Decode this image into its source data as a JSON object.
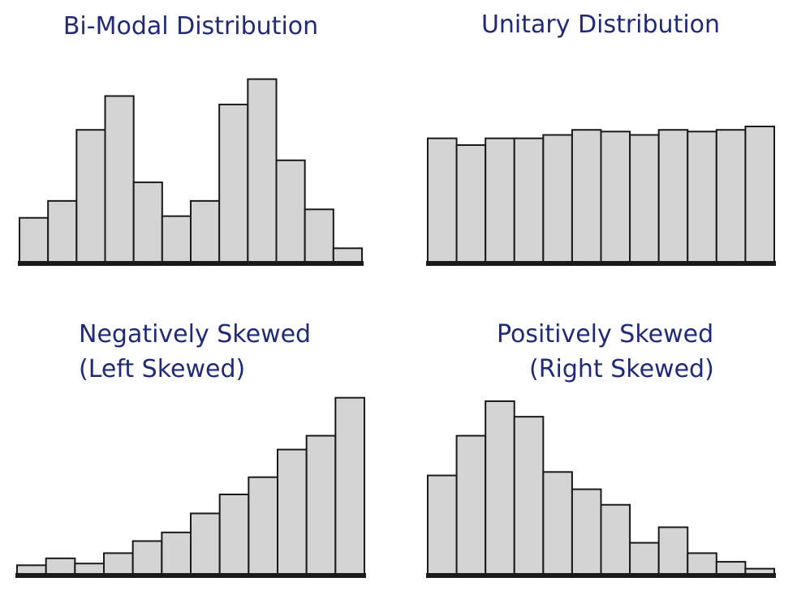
{
  "colors": {
    "title": "#1f2a7a",
    "bar_fill": "#d4d4d4",
    "bar_stroke": "#1a1a1a"
  },
  "chart_data": [
    {
      "type": "bar",
      "title_lines": [
        "Bi-Modal Distribution"
      ],
      "values": [
        26,
        36,
        78,
        98,
        47,
        27,
        36,
        93,
        108,
        60,
        31,
        8
      ],
      "ylim": [
        0,
        115
      ],
      "grid": false
    },
    {
      "type": "bar",
      "title_lines": [
        "Unitary Distribution"
      ],
      "values": [
        73,
        69,
        73,
        73,
        75,
        78,
        77,
        75,
        78,
        77,
        78,
        80
      ],
      "ylim": [
        0,
        115
      ],
      "grid": false
    },
    {
      "type": "bar",
      "title_lines": [
        "Negatively Skewed",
        "(Left Skewed)"
      ],
      "values": [
        5,
        9,
        6,
        12,
        19,
        24,
        35,
        46,
        56,
        72,
        80,
        102
      ],
      "ylim": [
        0,
        115
      ],
      "grid": false
    },
    {
      "type": "bar",
      "title_lines": [
        "Positively Skewed",
        "(Right Skewed)"
      ],
      "values": [
        57,
        80,
        100,
        91,
        59,
        49,
        40,
        18,
        27,
        12,
        7,
        3
      ],
      "ylim": [
        0,
        115
      ],
      "grid": false
    }
  ]
}
